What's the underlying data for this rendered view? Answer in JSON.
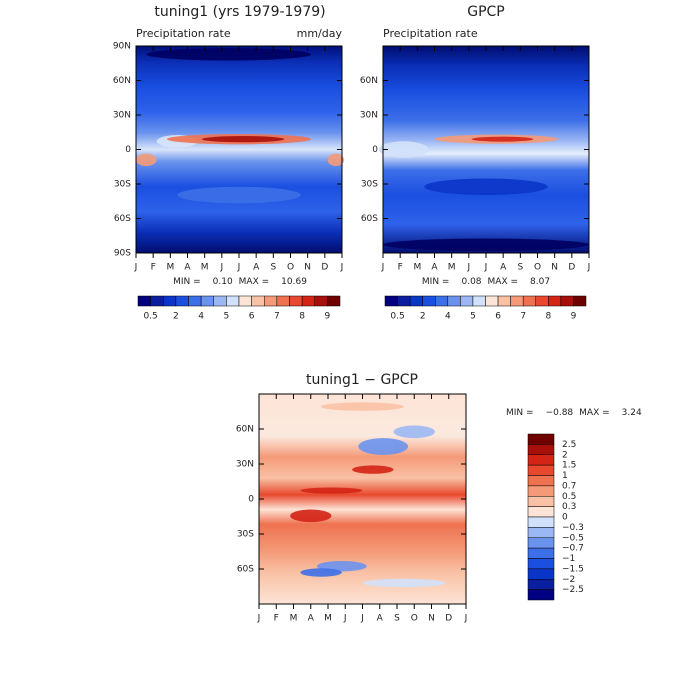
{
  "chart_data": [
    {
      "type": "contour",
      "title": "tuning1 (yrs 1979-1979)",
      "left_label": "Precipitation rate",
      "right_label": "mm/day",
      "categories": [
        "J",
        "F",
        "M",
        "A",
        "M",
        "J",
        "J",
        "A",
        "S",
        "O",
        "N",
        "D",
        "J"
      ],
      "ylim": [
        -90,
        90
      ],
      "yticks": [
        {
          "value": 90,
          "label": "90N"
        },
        {
          "value": 60,
          "label": "60N"
        },
        {
          "value": 30,
          "label": "30N"
        },
        0,
        {
          "value": -30,
          "label": "30S"
        },
        {
          "value": -60,
          "label": "60S"
        },
        {
          "value": -90,
          "label": "90S"
        }
      ],
      "stat_names": [
        "MIN =",
        "MAX ="
      ],
      "stats": [
        0.1,
        10.69
      ],
      "stat_labels": [
        "0.10",
        "10.69"
      ],
      "colorbar": {
        "orientation": "horizontal",
        "colors": [
          "#000080",
          "#0a1fa0",
          "#0b35c8",
          "#1a4fe0",
          "#3d6fe8",
          "#6a93ee",
          "#9cb8f4",
          "#d1e1fa",
          "#fde4d6",
          "#f9c1a5",
          "#f49a78",
          "#ee7250",
          "#e8492e",
          "#d42416",
          "#a80e0a",
          "#6e0000"
        ],
        "labels": [
          0.5,
          2,
          4,
          5,
          6,
          7,
          8,
          9
        ]
      }
    },
    {
      "type": "contour",
      "title": "GPCP",
      "left_label": "Precipitation rate",
      "categories": [
        "J",
        "F",
        "M",
        "A",
        "M",
        "J",
        "J",
        "A",
        "S",
        "O",
        "N",
        "D",
        "J"
      ],
      "ylim": [
        -90,
        90
      ],
      "yticks": [
        {
          "value": 60,
          "label": "60N"
        },
        {
          "value": 30,
          "label": "30N"
        },
        0,
        {
          "value": -30,
          "label": "30S"
        },
        {
          "value": -60,
          "label": "60S"
        }
      ],
      "stat_names": [
        "MIN =",
        "MAX ="
      ],
      "stats": [
        0.08,
        8.07
      ],
      "stat_labels": [
        "0.08",
        "8.07"
      ],
      "colorbar": {
        "orientation": "horizontal",
        "colors": [
          "#000080",
          "#0a1fa0",
          "#0b35c8",
          "#1a4fe0",
          "#3d6fe8",
          "#6a93ee",
          "#9cb8f4",
          "#d1e1fa",
          "#fde4d6",
          "#f9c1a5",
          "#f49a78",
          "#ee7250",
          "#e8492e",
          "#d42416",
          "#a80e0a",
          "#6e0000"
        ],
        "labels": [
          0.5,
          2,
          4,
          5,
          6,
          7,
          8,
          9
        ]
      }
    },
    {
      "type": "contour",
      "title": "tuning1 − GPCP",
      "categories": [
        "J",
        "F",
        "M",
        "A",
        "M",
        "J",
        "J",
        "A",
        "S",
        "O",
        "N",
        "D",
        "J"
      ],
      "ylim": [
        -90,
        90
      ],
      "yticks": [
        {
          "value": 60,
          "label": "60N"
        },
        {
          "value": 30,
          "label": "30N"
        },
        0,
        {
          "value": -30,
          "label": "30S"
        },
        {
          "value": -60,
          "label": "60S"
        }
      ],
      "stat_names": [
        "MIN =",
        "MAX ="
      ],
      "stats": [
        -0.88,
        3.24
      ],
      "stat_labels": [
        "−0.88",
        "3.24"
      ],
      "colorbar": {
        "orientation": "vertical",
        "colors": [
          "#6e0000",
          "#a80e0a",
          "#d42416",
          "#e8492e",
          "#ee7250",
          "#f49a78",
          "#f9c1a5",
          "#fde4d6",
          "#d1e1fa",
          "#9cb8f4",
          "#6a93ee",
          "#3d6fe8",
          "#1a4fe0",
          "#0b35c8",
          "#0a1fa0",
          "#000080"
        ],
        "labels": [
          2.5,
          2,
          1.5,
          1,
          0.7,
          0.5,
          0.3,
          0,
          {
            "value": -0.3,
            "label": "−0.3"
          },
          {
            "value": -0.5,
            "label": "−0.5"
          },
          {
            "value": -0.7,
            "label": "−0.7"
          },
          {
            "value": -1,
            "label": "−1"
          },
          {
            "value": -1.5,
            "label": "−1.5"
          },
          {
            "value": -2,
            "label": "−2"
          },
          {
            "value": -2.5,
            "label": "−2.5"
          }
        ]
      }
    }
  ]
}
